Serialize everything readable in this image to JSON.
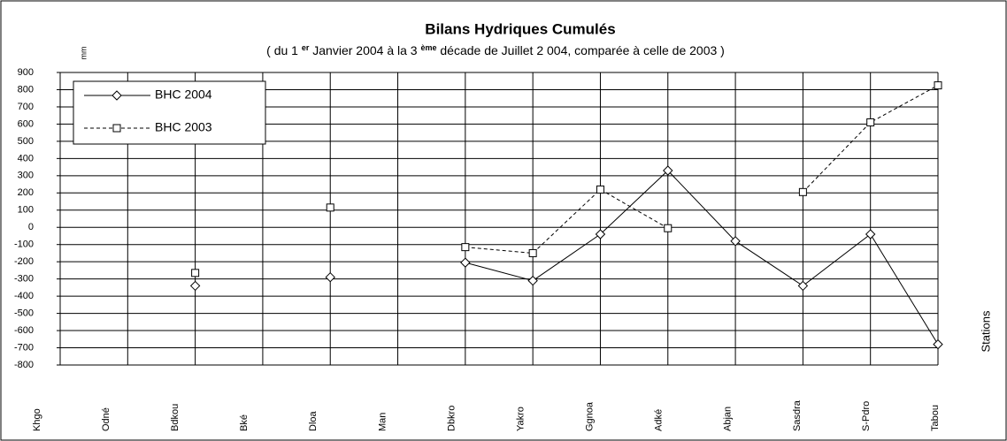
{
  "chart_data": {
    "type": "line",
    "title": "Bilans Hydriques Cumulés",
    "subtitle": [
      "( du 1 ",
      "er",
      " Janvier 2004  à   la 3 ",
      "ème",
      " décade de  Juillet   2 004, comparée à celle de 2003 )"
    ],
    "y_label": "mm",
    "x_label": "Stations",
    "categories": [
      "Khgo",
      "Odné",
      "Bdkou",
      "Bké",
      "Dloa",
      "Man",
      "Dbkro",
      "Yakro",
      "Ggnoa",
      "Adké",
      "Abjan",
      "Sasdra",
      "S-Pdro",
      "Tabou"
    ],
    "series": [
      {
        "name": "BHC 2004",
        "color": "#000000",
        "dash": false,
        "marker": "diamond",
        "values": [
          null,
          null,
          -340,
          null,
          -290,
          null,
          -205,
          -310,
          -40,
          330,
          -80,
          -340,
          -40,
          -680
        ]
      },
      {
        "name": "BHC 2003",
        "color": "#000000",
        "dash": true,
        "marker": "square",
        "values": [
          null,
          null,
          -265,
          null,
          115,
          null,
          -115,
          -150,
          220,
          -5,
          null,
          205,
          610,
          825
        ]
      }
    ],
    "ylim": [
      -800,
      900
    ],
    "yticks": [
      -800,
      -700,
      -600,
      -500,
      -400,
      -300,
      -200,
      -100,
      0,
      100,
      200,
      300,
      400,
      500,
      600,
      700,
      800,
      900
    ],
    "grid": true,
    "legend": "upper left"
  }
}
